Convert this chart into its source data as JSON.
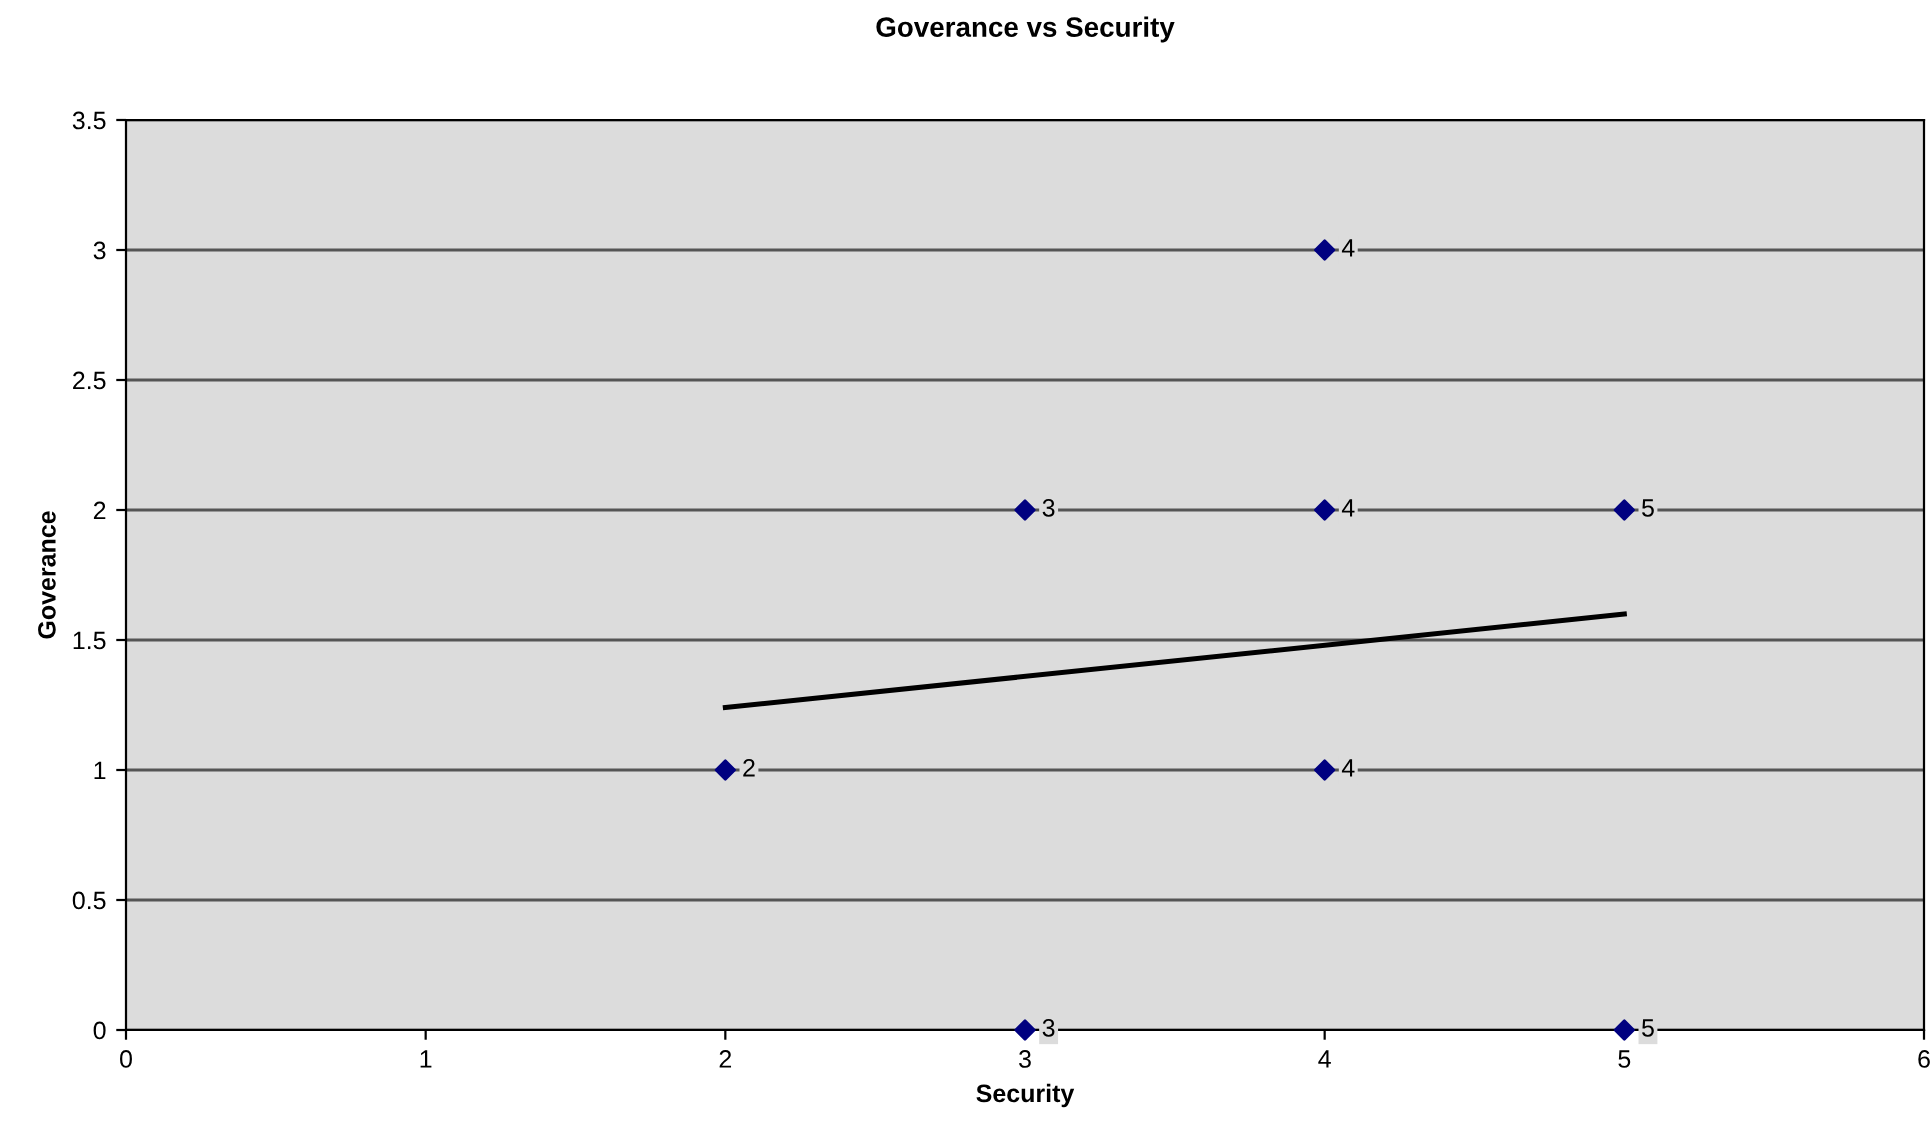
{
  "chart_data": {
    "type": "scatter",
    "title": "Goverance vs Security",
    "xlabel": "Security",
    "ylabel": "Goverance",
    "xlim": [
      0,
      6
    ],
    "xticks": [
      0,
      1,
      2,
      3,
      4,
      5,
      6
    ],
    "ylim": [
      0,
      3.5
    ],
    "yticks": [
      0,
      0.5,
      1,
      1.5,
      2,
      2.5,
      3,
      3.5
    ],
    "grid": "y",
    "marker": "diamond",
    "series": [
      {
        "type": "scatter",
        "color": "#000080",
        "x": [
          2,
          3,
          3,
          4,
          4,
          4,
          5,
          5
        ],
        "values": [
          1,
          2,
          0,
          3,
          2,
          1,
          2,
          0
        ]
      },
      {
        "type": "line",
        "color": "#000000",
        "x": [
          2,
          5
        ],
        "values": [
          1.24,
          1.6
        ],
        "marker": "none",
        "line_style": "solid"
      }
    ],
    "annotations": [
      {
        "text": "2",
        "x": 2,
        "y": 1
      },
      {
        "text": "3",
        "x": 3,
        "y": 2
      },
      {
        "text": "3",
        "x": 3,
        "y": 0
      },
      {
        "text": "4",
        "x": 4,
        "y": 3
      },
      {
        "text": "4",
        "x": 4,
        "y": 2
      },
      {
        "text": "4",
        "x": 4,
        "y": 1
      },
      {
        "text": "5",
        "x": 5,
        "y": 2
      },
      {
        "text": "5",
        "x": 5,
        "y": 0
      }
    ]
  }
}
